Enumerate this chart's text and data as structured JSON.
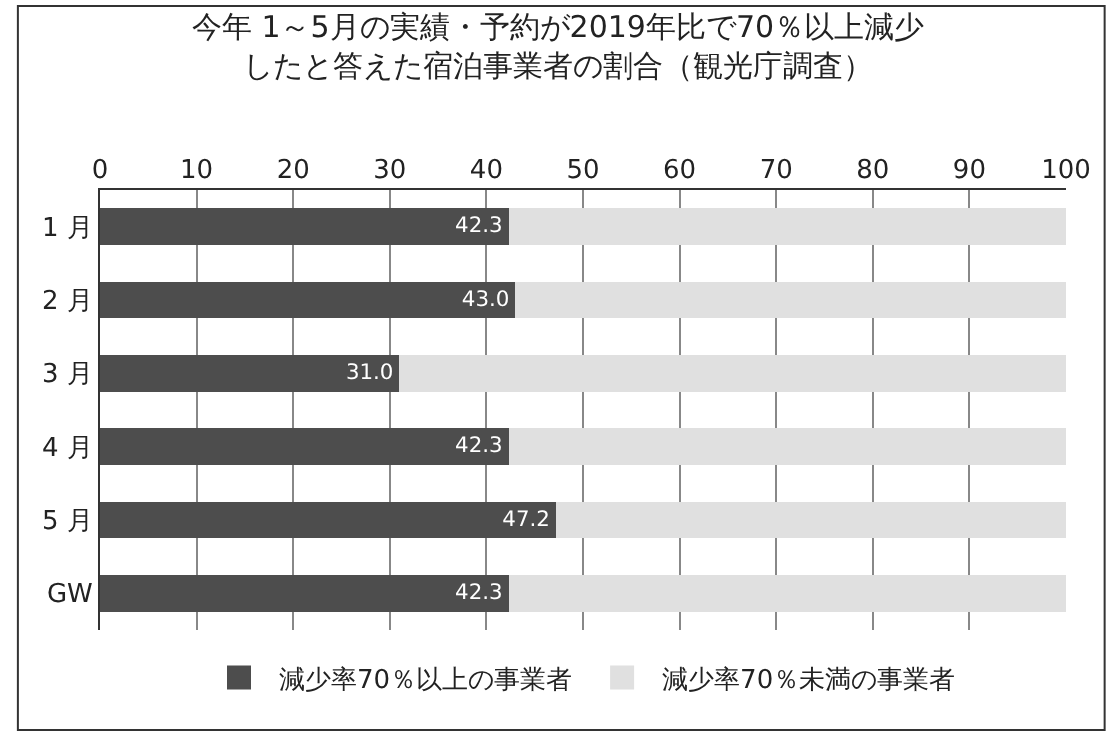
{
  "chart_data": {
    "type": "bar",
    "orientation": "horizontal",
    "stacked": true,
    "title": "今年 1～5月の実績・予約が2019年比で70％以上減少したと答えた宿泊事業者の割合（観光庁調査）",
    "categories": [
      "1 月",
      "2 月",
      "3 月",
      "4 月",
      "5 月",
      "GW"
    ],
    "series": [
      {
        "name": "減少率70％以上の事業者",
        "color": "#4d4d4d",
        "values": [
          42.3,
          43.0,
          31.0,
          42.3,
          47.2,
          42.3
        ],
        "value_labels": [
          "42.3",
          "43.0",
          "31.0",
          "42.3",
          "47.2",
          "42.3"
        ]
      },
      {
        "name": "減少率70％未満の事業者",
        "color": "#e0e0e0",
        "values": [
          57.7,
          57.0,
          69.0,
          57.7,
          52.8,
          57.7
        ]
      }
    ],
    "xlim": [
      0,
      100
    ],
    "xticks": [
      0,
      10,
      20,
      30,
      40,
      50,
      60,
      70,
      80,
      90,
      100
    ],
    "grid": "x",
    "legend": "bottom"
  }
}
